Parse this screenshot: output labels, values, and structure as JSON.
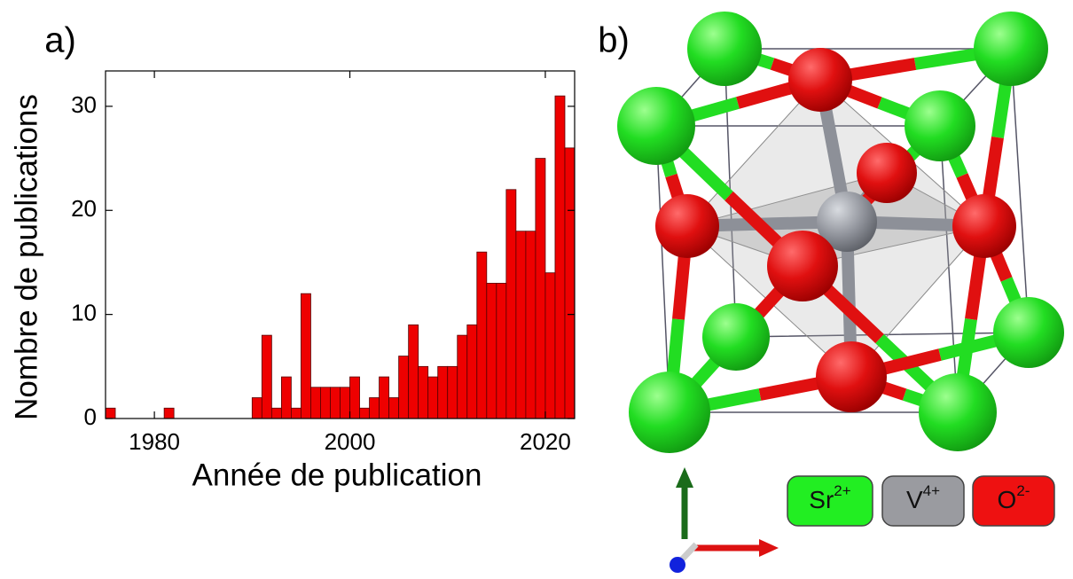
{
  "chart_data": {
    "type": "histogram",
    "panel_label": "a)",
    "x_label": "Année de publication",
    "y_label": "Nombre de publications",
    "bins": [
      1975,
      1976,
      1977,
      1978,
      1979,
      1980,
      1981,
      1982,
      1983,
      1984,
      1985,
      1986,
      1987,
      1988,
      1989,
      1990,
      1991,
      1992,
      1993,
      1994,
      1995,
      1996,
      1997,
      1998,
      1999,
      2000,
      2001,
      2002,
      2003,
      2004,
      2005,
      2006,
      2007,
      2008,
      2009,
      2010,
      2011,
      2012,
      2013,
      2014,
      2015,
      2016,
      2017,
      2018,
      2019,
      2020,
      2021,
      2022,
      2023
    ],
    "values": [
      1,
      0,
      0,
      0,
      0,
      0,
      1,
      0,
      0,
      0,
      0,
      0,
      0,
      0,
      0,
      2,
      8,
      1,
      4,
      1,
      12,
      3,
      3,
      3,
      3,
      4,
      1,
      2,
      4,
      2,
      6,
      9,
      5,
      4,
      5,
      5,
      8,
      9,
      16,
      13,
      13,
      22,
      18,
      18,
      25,
      14,
      31,
      26
    ],
    "color": "#ee0000",
    "xlim": [
      1975,
      2023
    ],
    "xticks": [
      1980,
      2000,
      2020
    ],
    "ylim": [
      0,
      33.4
    ],
    "yticks": [
      0,
      10,
      20,
      30
    ]
  },
  "structure": {
    "panel_label": "b)",
    "legend": [
      {
        "symbol": "Sr",
        "charge": "2+"
      },
      {
        "symbol": "V",
        "charge": "4+"
      },
      {
        "symbol": "O",
        "charge": "2-"
      }
    ]
  }
}
